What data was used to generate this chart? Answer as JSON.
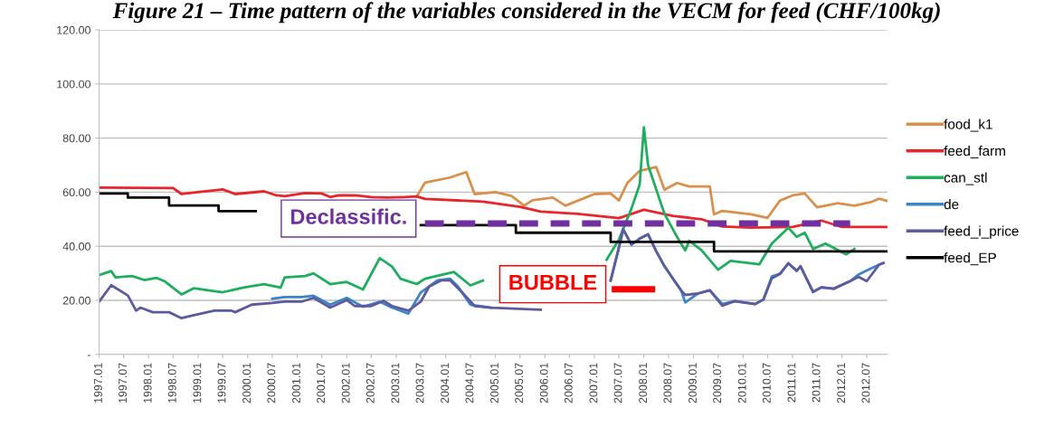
{
  "chart_data": {
    "type": "line",
    "title": "Figure 21 – Time pattern of the variables considered in the VECM for feed (CHF/100kg)",
    "xlim": [
      "1997-01",
      "2012-12"
    ],
    "xticks": [
      {
        "value": "1997-01",
        "label": "1997.01"
      },
      {
        "value": "1997-07",
        "label": "1997.07"
      },
      {
        "value": "1998-01",
        "label": "1998.01"
      },
      {
        "value": "1998-07",
        "label": "1998.07"
      },
      {
        "value": "1999-01",
        "label": "1999.01"
      },
      {
        "value": "1999-07",
        "label": "1999.07"
      },
      {
        "value": "2000-01",
        "label": "2000.01"
      },
      {
        "value": "2000-07",
        "label": "2000.07"
      },
      {
        "value": "2001-01",
        "label": "2001.01"
      },
      {
        "value": "2001-07",
        "label": "2001.07"
      },
      {
        "value": "2002-01",
        "label": "2002.01"
      },
      {
        "value": "2002-07",
        "label": "2002.07"
      },
      {
        "value": "2003-01",
        "label": "2003.01"
      },
      {
        "value": "2003-07",
        "label": "2003.07"
      },
      {
        "value": "2004-01",
        "label": "2004.01"
      },
      {
        "value": "2004-07",
        "label": "2004.07"
      },
      {
        "value": "2005-01",
        "label": "2005.01"
      },
      {
        "value": "2005-07",
        "label": "2005.07"
      },
      {
        "value": "2006-01",
        "label": "2006.01"
      },
      {
        "value": "2006-07",
        "label": "2006.07"
      },
      {
        "value": "2007-01",
        "label": "2007.01"
      },
      {
        "value": "2007-07",
        "label": "2007.07"
      },
      {
        "value": "2008-01",
        "label": "2008.01"
      },
      {
        "value": "2008-07",
        "label": "2008.07"
      },
      {
        "value": "2009-01",
        "label": "2009.01"
      },
      {
        "value": "2009-07",
        "label": "2009.07"
      },
      {
        "value": "2010-01",
        "label": "2010.01"
      },
      {
        "value": "2010-07",
        "label": "2010.07"
      },
      {
        "value": "2011-01",
        "label": "2011.01"
      },
      {
        "value": "2011-07",
        "label": "2011.07"
      },
      {
        "value": "2012-01",
        "label": "2012.01"
      },
      {
        "value": "2012-07",
        "label": "2012.07"
      }
    ],
    "ylim": [
      0,
      120
    ],
    "yticks": [
      {
        "value": 0,
        "label": "-"
      },
      {
        "value": 20,
        "label": "20.00"
      },
      {
        "value": 40,
        "label": "40.00"
      },
      {
        "value": 60,
        "label": "60.00"
      },
      {
        "value": 80,
        "label": "80.00"
      },
      {
        "value": 100,
        "label": "100.00"
      },
      {
        "value": 120,
        "label": "120.00"
      }
    ],
    "grid": "y",
    "legend": "right",
    "marker": "none",
    "series": [
      {
        "name": "food_k1",
        "color": "#d9904a",
        "x": [
          "2003-06",
          "2003-08",
          "2004-02",
          "2004-06",
          "2004-08",
          "2005-01",
          "2005-05",
          "2005-08",
          "2005-10",
          "2006-03",
          "2006-06",
          "2007-01",
          "2007-05",
          "2007-07",
          "2007-09",
          "2007-12",
          "2008-04",
          "2008-06",
          "2008-09",
          "2008-12",
          "2009-05",
          "2009-06",
          "2009-08",
          "2010-03",
          "2010-07",
          "2010-10",
          "2011-01",
          "2011-04",
          "2011-07",
          "2011-12",
          "2012-04",
          "2012-08",
          "2012-10",
          "2012-12"
        ],
        "values": [
          58.4,
          63.5,
          65.4,
          67.4,
          59.3,
          60,
          58.6,
          55,
          57,
          58,
          55,
          59.3,
          59.5,
          56.9,
          63.4,
          67.9,
          69.3,
          60.9,
          63.4,
          62.1,
          62.1,
          51.8,
          53.1,
          51.8,
          50.5,
          56.9,
          58.8,
          59.5,
          54.4,
          55.9,
          55,
          56.3,
          57.6,
          56.7
        ]
      },
      {
        "name": "feed_farm",
        "color": "#e8252b",
        "x": [
          "1997-01",
          "1998-07",
          "1998-09",
          "1999-07",
          "1999-10",
          "2000-05",
          "2000-08",
          "2000-10",
          "2001-03",
          "2001-07",
          "2001-09",
          "2001-11",
          "2002-03",
          "2002-07",
          "2002-11",
          "2003-03",
          "2003-06",
          "2003-08",
          "2004-10",
          "2005-07",
          "2005-12",
          "2006-09",
          "2007-07",
          "2008-01",
          "2008-08",
          "2009-03",
          "2009-08",
          "2010-03",
          "2011-01",
          "2011-08",
          "2012-01",
          "2012-12"
        ],
        "values": [
          61.7,
          61.5,
          59.3,
          61,
          59.3,
          60.3,
          58.8,
          58.5,
          59.7,
          59.5,
          58.2,
          58.8,
          58.8,
          58.2,
          58,
          58.2,
          58.4,
          57.5,
          56.5,
          54.6,
          52.8,
          52,
          50.4,
          53.5,
          51.2,
          50,
          47.3,
          46.9,
          47.1,
          49.5,
          47.1,
          47.1
        ]
      },
      {
        "name": "can_stl",
        "color": "#1fae5e",
        "x": [
          "1997-01",
          "1997-04",
          "1997-05",
          "1997-09",
          "1997-12",
          "1998-03",
          "1998-05",
          "1998-09",
          "1998-12",
          "1999-07",
          "1999-12",
          "2000-05",
          "2000-09",
          "2000-10",
          "2001-03",
          "2001-05",
          "2001-09",
          "2002-01",
          "2002-05",
          "2002-09",
          "2002-12",
          "2003-02",
          "2003-06",
          "2003-08",
          "2004-03",
          "2004-07",
          "2004-10",
          "2004-11",
          "2007-04",
          "2007-07",
          "2007-10",
          "2007-12",
          "2008-01",
          "2008-02",
          "2008-05",
          "2008-06",
          "2008-09",
          "2008-11",
          "2008-12",
          "2009-03",
          "2009-07",
          "2009-10",
          "2010-05",
          "2010-08",
          "2010-12",
          "2011-02",
          "2011-04",
          "2011-06",
          "2011-09",
          "2012-02",
          "2012-04"
        ],
        "values": [
          29.3,
          30.8,
          28.5,
          29,
          27.5,
          28.3,
          27,
          22.2,
          24.5,
          23,
          24.7,
          26,
          24.7,
          28.5,
          29,
          30,
          26,
          26.8,
          24,
          35.6,
          32.5,
          28,
          26,
          28,
          30.5,
          25.5,
          27.3,
          null,
          35,
          42.5,
          53.9,
          62.8,
          84,
          70,
          56.5,
          52,
          43.5,
          38.5,
          42,
          38.5,
          31.3,
          34.6,
          33.3,
          41,
          46.8,
          43.5,
          45,
          39,
          41,
          37,
          39
        ]
      },
      {
        "name": "de",
        "color": "#3a86c8",
        "x": [
          "2000-07",
          "2000-10",
          "2001-02",
          "2001-05",
          "2001-09",
          "2002-01",
          "2002-05",
          "2002-09",
          "2002-12",
          "2003-04",
          "2003-07",
          "2003-11",
          "2004-02",
          "2004-04",
          "2004-07",
          "2004-12",
          "2005-05",
          "2007-05",
          "2007-07",
          "2007-08",
          "2007-10",
          "2007-12",
          "2008-02",
          "2008-04",
          "2008-06",
          "2008-08",
          "2008-10",
          "2008-11",
          "2009-02",
          "2009-05",
          "2009-08",
          "2009-11",
          "2010-04",
          "2010-06",
          "2010-08",
          "2010-10",
          "2010-12",
          "2011-02",
          "2011-03",
          "2011-06",
          "2011-08",
          "2011-11",
          "2012-03",
          "2012-05",
          "2012-07",
          "2012-10",
          "2012-11"
        ],
        "values": [
          20.6,
          21.2,
          21.2,
          21.7,
          18.4,
          20.9,
          17.6,
          19.5,
          17.3,
          15.1,
          22.9,
          27.4,
          28,
          25.1,
          18.4,
          17.3,
          null,
          27.3,
          39.5,
          46.3,
          40.6,
          42.8,
          44.4,
          38.2,
          32.6,
          28.1,
          23.7,
          19.2,
          22.5,
          23.7,
          18.6,
          19.7,
          18.6,
          20.3,
          28.8,
          29.8,
          33.7,
          30.9,
          32.6,
          23.1,
          24.8,
          24.3,
          27.1,
          29.5,
          31,
          33.2,
          33.8
        ]
      },
      {
        "name": "feed_i_price",
        "color": "#5e5a9e",
        "x": [
          "1997-01",
          "1997-04",
          "1997-08",
          "1997-10",
          "1997-11",
          "1998-02",
          "1998-06",
          "1998-09",
          "1998-12",
          "1999-05",
          "1999-09",
          "1999-10",
          "2000-02",
          "2000-07",
          "2000-10",
          "2001-02",
          "2001-05",
          "2001-09",
          "2002-01",
          "2002-03",
          "2002-07",
          "2002-10",
          "2002-12",
          "2003-04",
          "2003-07",
          "2003-09",
          "2003-12",
          "2004-02",
          "2004-05",
          "2004-08",
          "2004-12",
          "2005-12",
          "2006-08",
          "2007-05",
          "2007-07",
          "2007-08",
          "2007-10",
          "2007-12",
          "2008-02",
          "2008-04",
          "2008-06",
          "2008-08",
          "2008-10",
          "2008-11",
          "2009-02",
          "2009-05",
          "2009-08",
          "2009-11",
          "2010-04",
          "2010-06",
          "2010-08",
          "2010-10",
          "2010-12",
          "2011-02",
          "2011-03",
          "2011-06",
          "2011-08",
          "2011-11",
          "2012-03",
          "2012-05",
          "2012-07",
          "2012-10",
          "2012-11"
        ],
        "values": [
          19.5,
          25.6,
          21.8,
          16.2,
          17.3,
          15.6,
          15.6,
          13.4,
          14.5,
          16.2,
          16.2,
          15.6,
          18.4,
          19,
          19.5,
          19.5,
          20.9,
          17.3,
          20.1,
          17.9,
          17.9,
          19.8,
          17.9,
          16.2,
          19.5,
          25.1,
          27.4,
          27.4,
          22.9,
          17.9,
          17.3,
          16.5,
          null,
          27.3,
          39.5,
          46.3,
          40.6,
          42.8,
          44.4,
          38.2,
          32.6,
          28.1,
          23.7,
          22,
          22.5,
          23.7,
          18,
          19.7,
          18.6,
          20.3,
          28.1,
          29.8,
          33.7,
          30.9,
          32.6,
          23.1,
          24.8,
          24.3,
          27.1,
          28.7,
          27.1,
          33.2,
          33.8
        ]
      },
      {
        "name": "feed_EP",
        "color": "#000000",
        "type": "step",
        "x": [
          "1997-01",
          "1997-08",
          "1998-06",
          "1999-06",
          "2000-02",
          "2000-03",
          "2003-07",
          "2005-06",
          "2007-05",
          "2009-06",
          "2012-12"
        ],
        "values": [
          59.5,
          58,
          55.1,
          53,
          53,
          null,
          47.8,
          45,
          41.6,
          38.1,
          38.1
        ]
      },
      {
        "color": "#7030a0",
        "line_style": "dashed",
        "x": [
          "2003-08",
          "2012-03"
        ],
        "values": [
          48.4,
          48.4
        ]
      },
      {
        "color": "#ff0000",
        "x": [
          "2007-06",
          "2008-03"
        ],
        "values": [
          24.1,
          24.1
        ]
      }
    ],
    "annotations": [
      "Declassific.",
      "BUBBLE"
    ]
  }
}
